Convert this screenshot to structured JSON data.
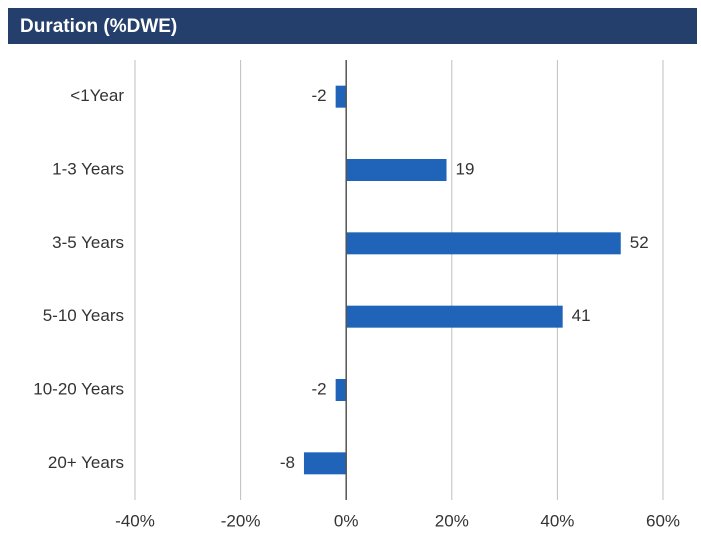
{
  "chart_data": {
    "type": "hbar",
    "title": "Duration (%DWE)",
    "categories": [
      "<1Year",
      "1-3 Years",
      "3-5 Years",
      "5-10 Years",
      "10-20 Years",
      "20+ Years"
    ],
    "values": [
      -2,
      19,
      52,
      41,
      -2,
      -8
    ],
    "color": "#1f64b9",
    "xlim": [
      -40,
      60
    ],
    "xticks": [
      {
        "value": -40,
        "label": "-40%"
      },
      {
        "value": -20,
        "label": "-20%"
      },
      {
        "value": 0,
        "label": "0%"
      },
      {
        "value": 20,
        "label": "20%"
      },
      {
        "value": 40,
        "label": "40%"
      },
      {
        "value": 60,
        "label": "60%"
      }
    ],
    "grid": true
  }
}
